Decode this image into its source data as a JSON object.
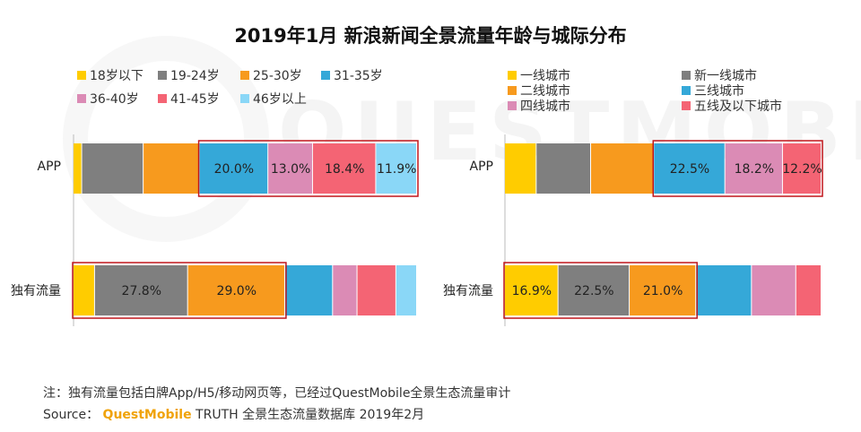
{
  "title": "2019年1月 新浪新闻全景流量年龄与城际分布",
  "colors": {
    "yellow": "#FFCC00",
    "gray": "#7F7F7F",
    "orange": "#F79A1E",
    "blue": "#35A8D8",
    "pink": "#DB8BB5",
    "red": "#F46474",
    "lightblue": "#8AD7F7",
    "highlight": "#C0161C"
  },
  "chart_data": [
    {
      "type": "bar",
      "orientation": "horizontal",
      "stacked": true,
      "percent_stacked": true,
      "categories": [
        "APP",
        "独有流量"
      ],
      "legend_position": "top",
      "series": [
        {
          "name": "18岁以下",
          "color": "yellow",
          "values": [
            2.5,
            6.4
          ],
          "labels": [
            "",
            ""
          ]
        },
        {
          "name": "19-24岁",
          "color": "gray",
          "values": [
            17.9,
            27.8
          ],
          "labels": [
            "",
            "27.8%"
          ]
        },
        {
          "name": "25-30岁",
          "color": "orange",
          "values": [
            16.3,
            29.0
          ],
          "labels": [
            "",
            "29.0%"
          ]
        },
        {
          "name": "31-35岁",
          "color": "blue",
          "values": [
            20.0,
            14.3
          ],
          "labels": [
            "20.0%",
            ""
          ]
        },
        {
          "name": "36-40岁",
          "color": "pink",
          "values": [
            13.0,
            7.3
          ],
          "labels": [
            "13.0%",
            ""
          ]
        },
        {
          "name": "41-45岁",
          "color": "red",
          "values": [
            18.4,
            11.6
          ],
          "labels": [
            "18.4%",
            ""
          ]
        },
        {
          "name": "46岁以上",
          "color": "lightblue",
          "values": [
            11.9,
            6.2
          ],
          "labels": [
            "11.9%",
            ""
          ]
        }
      ],
      "highlights": [
        {
          "category": "APP",
          "series_from": 3,
          "series_to": 6
        },
        {
          "category": "独有流量",
          "series_from": 0,
          "series_to": 2
        }
      ]
    },
    {
      "type": "bar",
      "orientation": "horizontal",
      "stacked": true,
      "percent_stacked": true,
      "categories": [
        "APP",
        "独有流量"
      ],
      "legend_position": "top",
      "series": [
        {
          "name": "一线城市",
          "color": "yellow",
          "values": [
            10.0,
            16.9
          ],
          "labels": [
            "",
            "16.9%"
          ]
        },
        {
          "name": "新一线城市",
          "color": "gray",
          "values": [
            17.2,
            22.5
          ],
          "labels": [
            "",
            "22.5%"
          ]
        },
        {
          "name": "二线城市",
          "color": "orange",
          "values": [
            19.9,
            21.0
          ],
          "labels": [
            "",
            "21.0%"
          ]
        },
        {
          "name": "三线城市",
          "color": "blue",
          "values": [
            22.5,
            17.6
          ],
          "labels": [
            "22.5%",
            ""
          ]
        },
        {
          "name": "四线城市",
          "color": "pink",
          "values": [
            18.2,
            14.0
          ],
          "labels": [
            "18.2%",
            ""
          ]
        },
        {
          "name": "五线及以下城市",
          "color": "red",
          "values": [
            12.2,
            8.0
          ],
          "labels": [
            "12.2%",
            ""
          ]
        }
      ],
      "highlights": [
        {
          "category": "APP",
          "series_from": 3,
          "series_to": 5
        },
        {
          "category": "独有流量",
          "series_from": 0,
          "series_to": 2
        }
      ]
    }
  ],
  "footer": {
    "note": "注：独有流量包括白牌App/H5/移动网页等，已经过QuestMobile全景生态流量审计",
    "source_prefix": "Source：",
    "source_brand": "QuestMobile",
    "source_rest": " TRUTH 全景生态流量数据库 2019年2月"
  }
}
